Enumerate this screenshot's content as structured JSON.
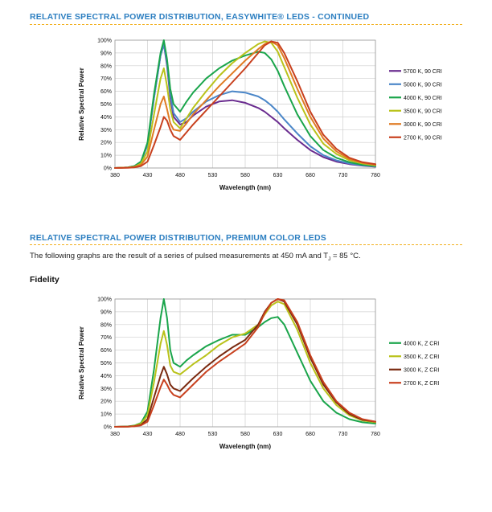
{
  "section1": {
    "title": "RELATIVE SPECTRAL POWER DISTRIBUTION, EASYWHITE® LEDS - CONTINUED"
  },
  "section2": {
    "title": "RELATIVE SPECTRAL POWER DISTRIBUTION, PREMIUM COLOR LEDS",
    "text_before": "The following graphs are the result of a series of pulsed measurements at 450 mA and T",
    "text_sub": "J",
    "text_after": " = 85 °C.",
    "subheading": "Fidelity"
  },
  "chart_data": [
    {
      "type": "line",
      "xlabel": "Wavelength (nm)",
      "ylabel": "Relative Spectral Power",
      "xlim": [
        380,
        780
      ],
      "ylim": [
        0,
        100
      ],
      "xticks": [
        380,
        430,
        480,
        530,
        580,
        630,
        680,
        730,
        780
      ],
      "yticks": [
        0,
        10,
        20,
        30,
        40,
        50,
        60,
        70,
        80,
        90,
        100
      ],
      "ytick_labels": [
        "0%",
        "10%",
        "20%",
        "30%",
        "40%",
        "50%",
        "60%",
        "70%",
        "80%",
        "90%",
        "100%"
      ],
      "grid": true,
      "legend_position": "right",
      "x": [
        380,
        400,
        410,
        420,
        430,
        440,
        450,
        455,
        460,
        465,
        470,
        480,
        490,
        500,
        520,
        540,
        560,
        580,
        600,
        610,
        620,
        630,
        640,
        660,
        680,
        700,
        720,
        740,
        760,
        780
      ],
      "series": [
        {
          "name": "5700 K, 90 CRI",
          "color": "#6a2c8f",
          "values": [
            0,
            0.5,
            1.5,
            5,
            18,
            55,
            88,
            97,
            80,
            55,
            40,
            34,
            36,
            41,
            48,
            52,
            53,
            51,
            47,
            44,
            40,
            36,
            31,
            22,
            14,
            8.5,
            5,
            3,
            1.8,
            1
          ]
        },
        {
          "name": "5000 K, 90 CRI",
          "color": "#4a86c8",
          "values": [
            0,
            0.5,
            1.5,
            5,
            18,
            55,
            88,
            97,
            82,
            58,
            43,
            36,
            39,
            44,
            52,
            57,
            60,
            59,
            56,
            53,
            49,
            44,
            38,
            27,
            17,
            10,
            6,
            3.5,
            2,
            1.2
          ]
        },
        {
          "name": "4000 K, 90 CRI",
          "color": "#1aa54b",
          "values": [
            0,
            0.5,
            1.5,
            5,
            20,
            58,
            90,
            100,
            85,
            62,
            50,
            44,
            52,
            59,
            70,
            78,
            84,
            88,
            91,
            90,
            85,
            76,
            64,
            42,
            25,
            14,
            8,
            4.5,
            2.5,
            1.5
          ]
        },
        {
          "name": "3500 K, 90 CRI",
          "color": "#b9c21a",
          "values": [
            0,
            0.4,
            1,
            3.5,
            13,
            42,
            70,
            78,
            64,
            46,
            36,
            31,
            39,
            47,
            60,
            72,
            82,
            90,
            97,
            99,
            98,
            91,
            79,
            55,
            34,
            19,
            11,
            6,
            3.5,
            2
          ]
        },
        {
          "name": "3000 K, 90 CRI",
          "color": "#e07b23",
          "values": [
            0,
            0.3,
            0.8,
            2.5,
            9,
            30,
            50,
            56,
            46,
            35,
            30,
            29,
            35,
            42,
            53,
            64,
            74,
            84,
            93,
            97,
            99,
            96,
            86,
            62,
            40,
            23,
            13,
            7,
            4,
            2.5
          ]
        },
        {
          "name": "2700 K, 90 CRI",
          "color": "#c8401e",
          "values": [
            0,
            0.2,
            0.5,
            1.5,
            5,
            18,
            32,
            40,
            37,
            30,
            25,
            22,
            28,
            34,
            45,
            56,
            67,
            78,
            90,
            96,
            99,
            98,
            90,
            68,
            44,
            26,
            15,
            8,
            4.5,
            3
          ]
        }
      ]
    },
    {
      "type": "line",
      "xlabel": "Wavelength (nm)",
      "ylabel": "Relative Spectral Power",
      "xlim": [
        380,
        780
      ],
      "ylim": [
        0,
        100
      ],
      "xticks": [
        380,
        430,
        480,
        530,
        580,
        630,
        680,
        730,
        780
      ],
      "yticks": [
        0,
        10,
        20,
        30,
        40,
        50,
        60,
        70,
        80,
        90,
        100
      ],
      "ytick_labels": [
        "0%",
        "10%",
        "20%",
        "30%",
        "40%",
        "50%",
        "60%",
        "70%",
        "80%",
        "90%",
        "100%"
      ],
      "grid": true,
      "legend_position": "right",
      "x": [
        380,
        400,
        410,
        420,
        430,
        440,
        450,
        455,
        460,
        465,
        470,
        480,
        490,
        500,
        520,
        540,
        560,
        580,
        600,
        610,
        620,
        630,
        640,
        660,
        680,
        700,
        720,
        740,
        760,
        780
      ],
      "series": [
        {
          "name": "4000 K, Z CRI",
          "color": "#1aa54b",
          "values": [
            0,
            0.3,
            1,
            3,
            12,
            45,
            85,
            100,
            85,
            60,
            50,
            47,
            52,
            56,
            63,
            68,
            72,
            72,
            78,
            82,
            85,
            86,
            80,
            58,
            36,
            20,
            11,
            6,
            3.5,
            2.5
          ]
        },
        {
          "name": "3500 K, Z CRI",
          "color": "#b9c21a",
          "values": [
            0,
            0.2,
            0.8,
            2.5,
            9,
            35,
            65,
            75,
            64,
            48,
            43,
            41,
            45,
            49,
            56,
            64,
            70,
            73,
            80,
            88,
            95,
            98,
            96,
            76,
            50,
            30,
            17,
            9,
            5,
            3.5
          ]
        },
        {
          "name": "3000 K, Z CRI",
          "color": "#7a2a10",
          "values": [
            0,
            0.2,
            0.5,
            1.5,
            6,
            23,
            40,
            47,
            41,
            33,
            30,
            28,
            33,
            38,
            47,
            55,
            62,
            68,
            80,
            90,
            97,
            100,
            98,
            80,
            54,
            33,
            19,
            10,
            5.5,
            4
          ]
        },
        {
          "name": "2700 K, Z CRI",
          "color": "#c8401e",
          "values": [
            0,
            0.1,
            0.4,
            1.2,
            4,
            17,
            31,
            37,
            33,
            28,
            25,
            23,
            28,
            33,
            43,
            51,
            58,
            65,
            78,
            89,
            97,
            100,
            99,
            82,
            56,
            35,
            20,
            11,
            6,
            4
          ]
        }
      ]
    }
  ]
}
